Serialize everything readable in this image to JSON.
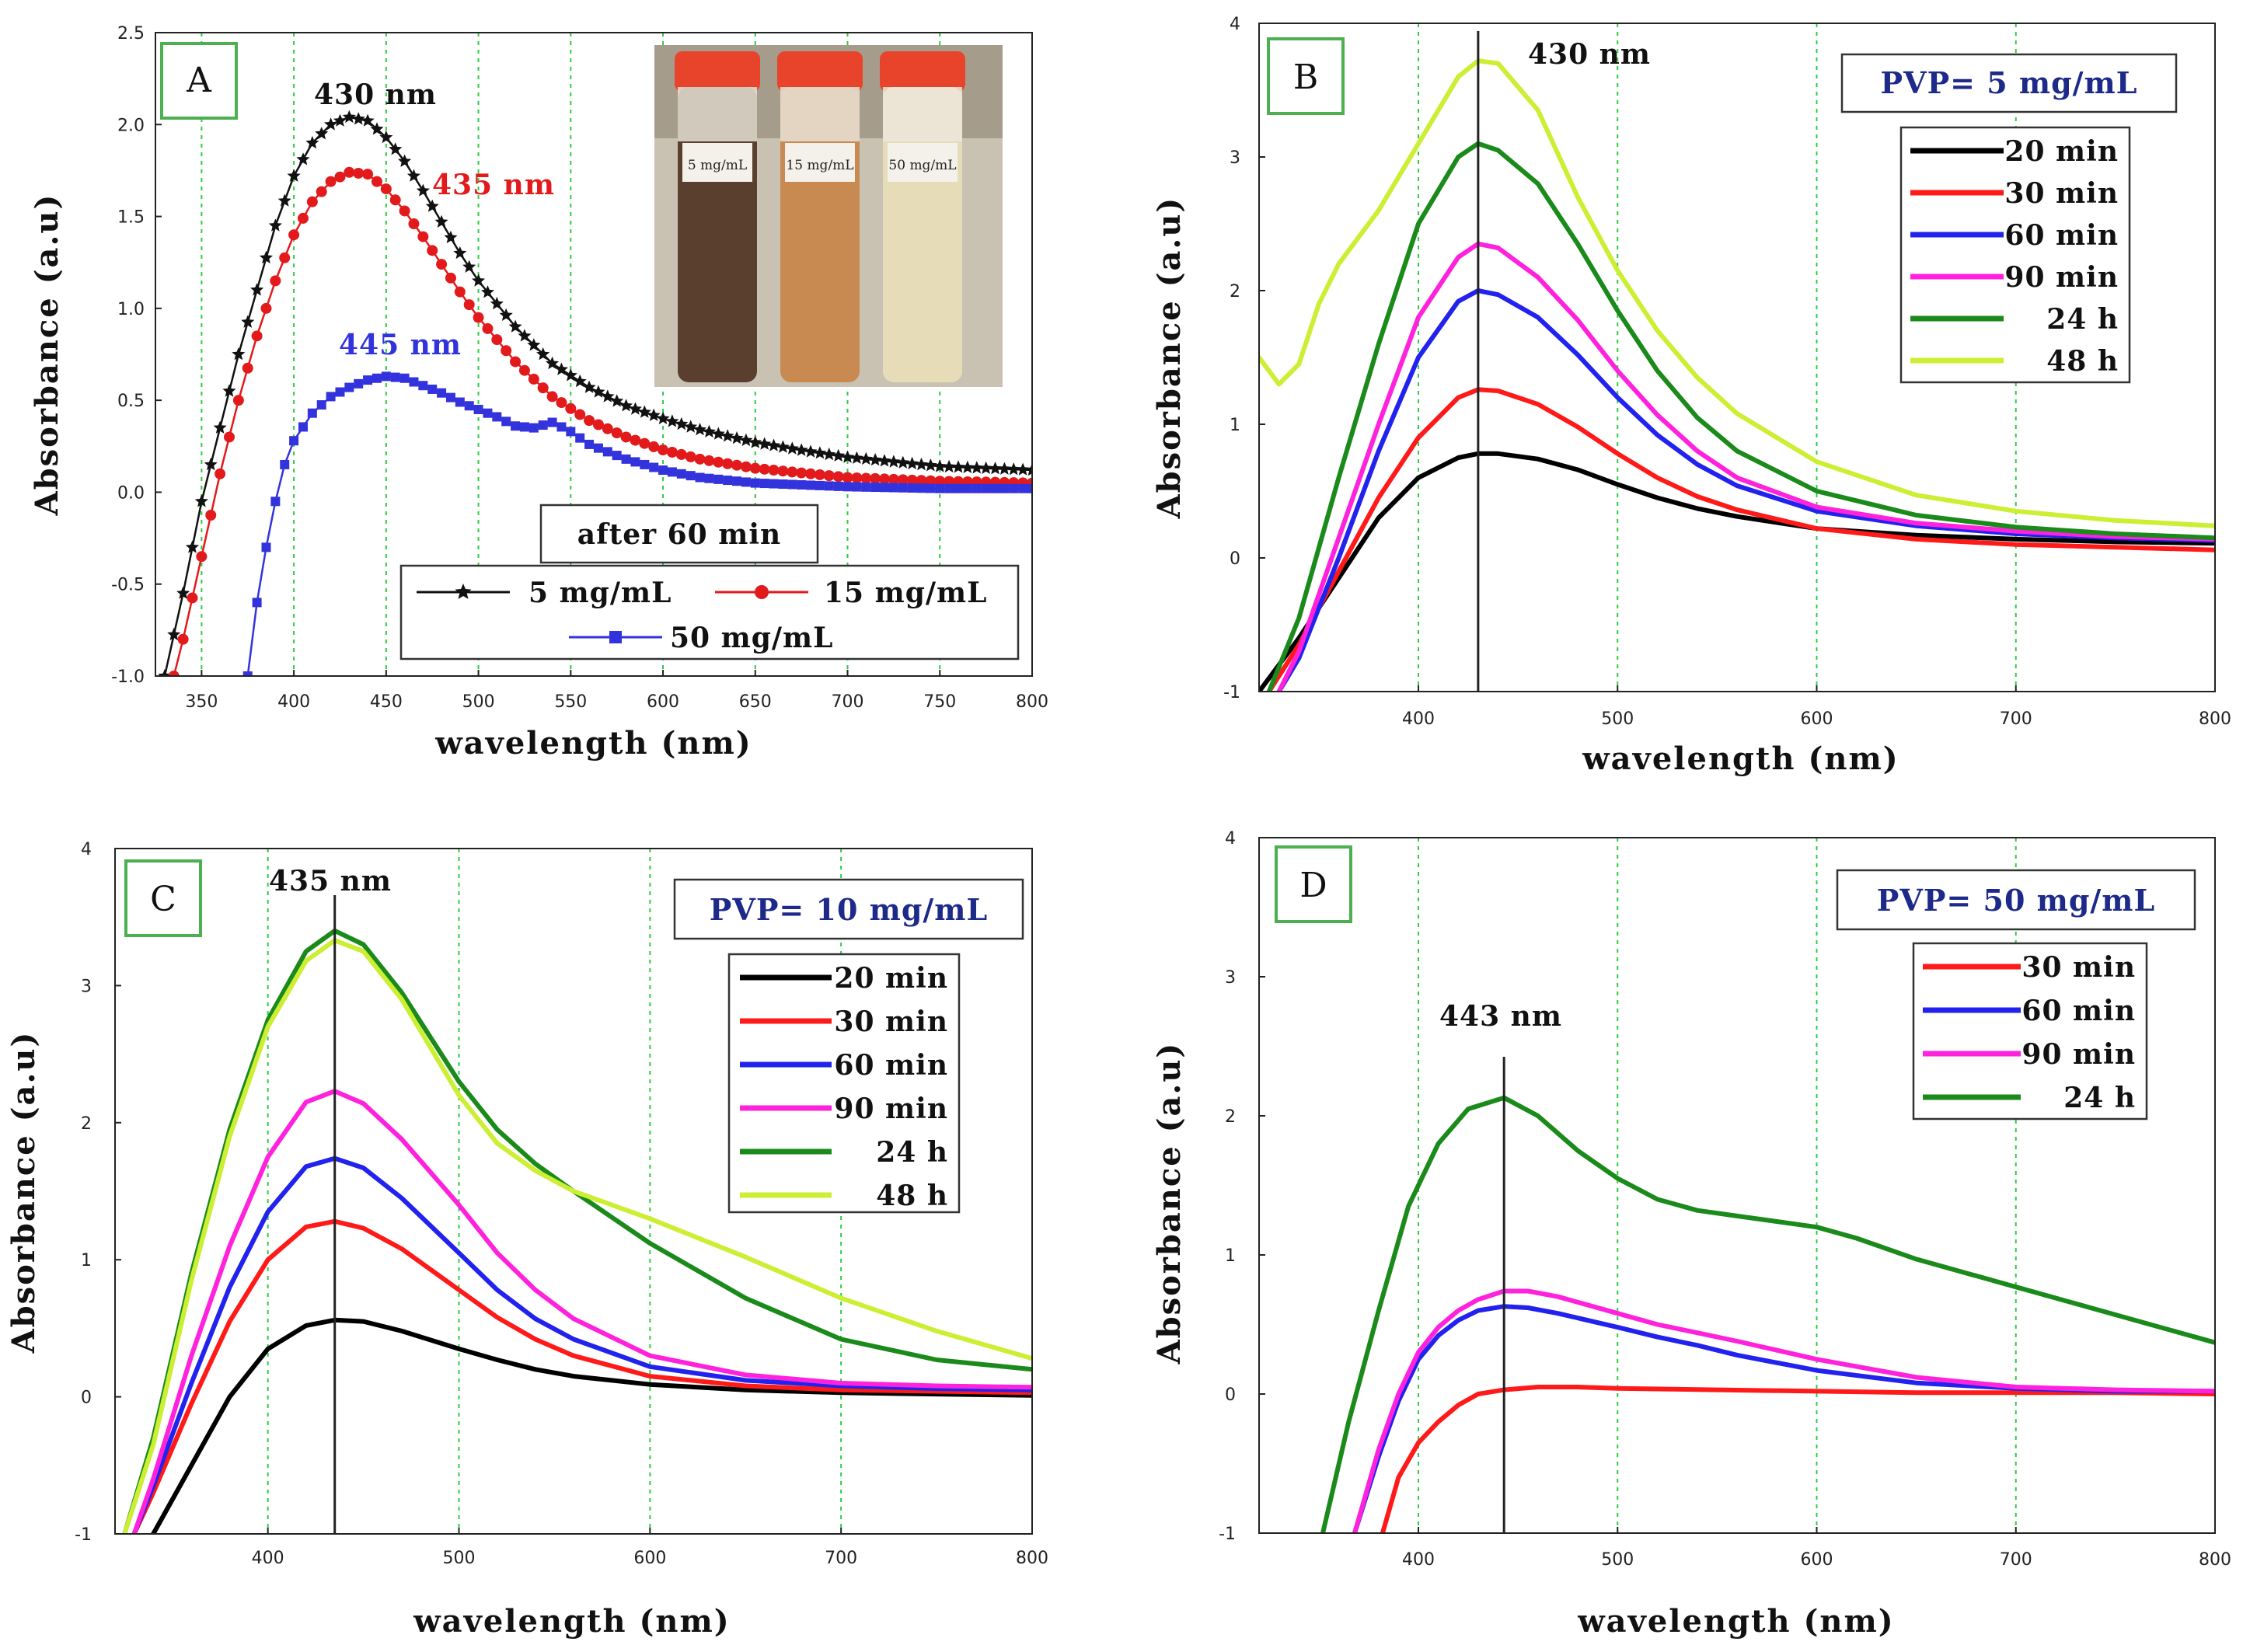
{
  "chart_data": [
    {
      "panel": "A",
      "type": "line",
      "x_label": "wavelength (nm)",
      "y_label": "Absorbance (a.u)",
      "x_ticks": [
        "350",
        "400",
        "450",
        "500",
        "550",
        "600",
        "650",
        "700",
        "750",
        "800"
      ],
      "y_ticks": [
        "-1.0",
        "-0.5",
        "0.0",
        "0.5",
        "1.0",
        "1.5",
        "2.0",
        "2.5"
      ],
      "xlim": [
        325,
        800
      ],
      "ylim": [
        -1.0,
        2.5
      ],
      "grid_x": [
        350,
        400,
        450,
        500,
        550,
        600,
        650,
        700,
        750,
        800
      ],
      "note": "after 60 min",
      "inset_photo_labels": [
        "5 mg/mL",
        "15 mg/mL",
        "50 mg/mL"
      ],
      "peak_annotations": [
        {
          "text": "430 nm",
          "color": "#111111"
        },
        {
          "text": "435 nm",
          "color": "#e31a1c"
        },
        {
          "text": "445 nm",
          "color": "#3333dd"
        }
      ],
      "series": [
        {
          "name": "5 mg/mL",
          "color": "#111111",
          "marker": "star",
          "x": [
            330,
            340,
            350,
            360,
            370,
            380,
            390,
            400,
            410,
            420,
            430,
            440,
            450,
            460,
            470,
            480,
            490,
            500,
            520,
            540,
            560,
            580,
            600,
            620,
            650,
            680,
            700,
            750,
            800
          ],
          "y": [
            -1.0,
            -0.55,
            -0.05,
            0.35,
            0.75,
            1.1,
            1.45,
            1.72,
            1.9,
            2.0,
            2.04,
            2.02,
            1.93,
            1.8,
            1.64,
            1.47,
            1.3,
            1.15,
            0.9,
            0.7,
            0.57,
            0.47,
            0.4,
            0.34,
            0.27,
            0.22,
            0.19,
            0.14,
            0.12
          ]
        },
        {
          "name": "15 mg/mL",
          "color": "#e31a1c",
          "marker": "circle",
          "x": [
            335,
            340,
            350,
            360,
            370,
            380,
            390,
            400,
            410,
            420,
            430,
            440,
            450,
            460,
            470,
            480,
            490,
            500,
            520,
            540,
            560,
            580,
            600,
            620,
            650,
            680,
            700,
            750,
            800
          ],
          "y": [
            -1.0,
            -0.8,
            -0.35,
            0.1,
            0.5,
            0.85,
            1.15,
            1.4,
            1.58,
            1.69,
            1.74,
            1.73,
            1.65,
            1.53,
            1.39,
            1.24,
            1.09,
            0.95,
            0.71,
            0.52,
            0.39,
            0.3,
            0.23,
            0.18,
            0.13,
            0.1,
            0.08,
            0.06,
            0.05
          ]
        },
        {
          "name": "50 mg/mL",
          "color": "#3333dd",
          "marker": "square",
          "x": [
            375,
            380,
            385,
            390,
            395,
            400,
            410,
            420,
            430,
            440,
            450,
            460,
            470,
            480,
            490,
            500,
            510,
            520,
            530,
            540,
            550,
            560,
            580,
            600,
            620,
            650,
            700,
            750,
            800
          ],
          "y": [
            -1.0,
            -0.6,
            -0.3,
            -0.05,
            0.15,
            0.28,
            0.43,
            0.52,
            0.57,
            0.61,
            0.63,
            0.62,
            0.58,
            0.54,
            0.49,
            0.45,
            0.41,
            0.36,
            0.35,
            0.38,
            0.33,
            0.26,
            0.18,
            0.12,
            0.08,
            0.05,
            0.03,
            0.02,
            0.02
          ]
        }
      ]
    },
    {
      "panel": "B",
      "type": "line",
      "x_label": "wavelength (nm)",
      "y_label": "Absorbance (a.u)",
      "x_ticks": [
        "400",
        "500",
        "600",
        "700",
        "800"
      ],
      "y_ticks": [
        "-1",
        "0",
        "1",
        "2",
        "3",
        "4"
      ],
      "xlim": [
        320,
        800
      ],
      "ylim": [
        -1,
        4
      ],
      "grid_x": [
        400,
        500,
        600,
        700
      ],
      "peak_line_x": 430,
      "peak_label": "430 nm",
      "pvp_label": "PVP= 5 mg/mL",
      "series": [
        {
          "name": "20 min",
          "color": "#000000",
          "x": [
            320,
            340,
            360,
            380,
            400,
            420,
            430,
            440,
            460,
            480,
            500,
            520,
            540,
            560,
            600,
            650,
            700,
            750,
            800
          ],
          "y": [
            -1.0,
            -0.6,
            -0.15,
            0.3,
            0.6,
            0.75,
            0.78,
            0.78,
            0.74,
            0.66,
            0.55,
            0.45,
            0.37,
            0.31,
            0.22,
            0.17,
            0.14,
            0.12,
            0.11
          ]
        },
        {
          "name": "30 min",
          "color": "#ff1a1a",
          "x": [
            325,
            340,
            360,
            380,
            400,
            420,
            430,
            440,
            460,
            480,
            500,
            520,
            540,
            560,
            600,
            650,
            700,
            750,
            800
          ],
          "y": [
            -1.0,
            -0.65,
            -0.1,
            0.45,
            0.9,
            1.2,
            1.26,
            1.25,
            1.15,
            0.98,
            0.78,
            0.6,
            0.46,
            0.36,
            0.22,
            0.14,
            0.1,
            0.08,
            0.06
          ]
        },
        {
          "name": "60 min",
          "color": "#2222ee",
          "x": [
            330,
            340,
            360,
            380,
            400,
            420,
            430,
            440,
            460,
            480,
            500,
            520,
            540,
            560,
            600,
            650,
            700,
            750,
            800
          ],
          "y": [
            -1.0,
            -0.75,
            0.0,
            0.8,
            1.5,
            1.92,
            2.0,
            1.97,
            1.8,
            1.52,
            1.2,
            0.92,
            0.7,
            0.54,
            0.35,
            0.24,
            0.18,
            0.15,
            0.13
          ]
        },
        {
          "name": "90 min",
          "color": "#ff22dd",
          "x": [
            330,
            340,
            360,
            380,
            400,
            420,
            430,
            440,
            460,
            480,
            500,
            520,
            540,
            560,
            600,
            650,
            700,
            750,
            800
          ],
          "y": [
            -1.0,
            -0.7,
            0.15,
            1.0,
            1.8,
            2.25,
            2.35,
            2.32,
            2.1,
            1.78,
            1.4,
            1.07,
            0.8,
            0.6,
            0.38,
            0.26,
            0.2,
            0.16,
            0.14
          ]
        },
        {
          "name": "24 h",
          "color": "#1a8a1a",
          "x": [
            325,
            340,
            360,
            380,
            400,
            420,
            430,
            440,
            460,
            480,
            500,
            520,
            540,
            560,
            600,
            650,
            700,
            750,
            800
          ],
          "y": [
            -1.0,
            -0.45,
            0.6,
            1.6,
            2.5,
            3.0,
            3.1,
            3.05,
            2.8,
            2.35,
            1.85,
            1.4,
            1.05,
            0.8,
            0.5,
            0.32,
            0.23,
            0.18,
            0.15
          ]
        },
        {
          "name": "48 h",
          "color": "#ccee33",
          "x": [
            320,
            330,
            340,
            350,
            360,
            380,
            400,
            420,
            430,
            440,
            460,
            480,
            500,
            520,
            540,
            560,
            600,
            650,
            700,
            750,
            800
          ],
          "y": [
            1.5,
            1.3,
            1.45,
            1.9,
            2.2,
            2.6,
            3.1,
            3.6,
            3.72,
            3.7,
            3.35,
            2.7,
            2.15,
            1.7,
            1.35,
            1.08,
            0.72,
            0.47,
            0.35,
            0.28,
            0.24
          ]
        }
      ]
    },
    {
      "panel": "C",
      "type": "line",
      "x_label": "wavelength (nm)",
      "y_label": "Absorbance (a.u)",
      "x_ticks": [
        "400",
        "500",
        "600",
        "700",
        "800"
      ],
      "y_ticks": [
        "-1",
        "0",
        "1",
        "2",
        "3",
        "4"
      ],
      "xlim": [
        320,
        800
      ],
      "ylim": [
        -1,
        4
      ],
      "grid_x": [
        400,
        500,
        600,
        700
      ],
      "peak_line_x": 435,
      "peak_label": "435 nm",
      "pvp_label": "PVP= 10 mg/mL",
      "series": [
        {
          "name": "20 min",
          "color": "#000000",
          "x": [
            340,
            360,
            380,
            400,
            420,
            435,
            450,
            470,
            500,
            520,
            540,
            560,
            600,
            650,
            700,
            750,
            800
          ],
          "y": [
            -1.0,
            -0.5,
            0.0,
            0.35,
            0.52,
            0.56,
            0.55,
            0.48,
            0.35,
            0.27,
            0.2,
            0.15,
            0.09,
            0.05,
            0.03,
            0.02,
            0.01
          ]
        },
        {
          "name": "30 min",
          "color": "#ff1a1a",
          "x": [
            330,
            340,
            360,
            380,
            400,
            420,
            435,
            450,
            470,
            500,
            520,
            540,
            560,
            600,
            650,
            700,
            750,
            800
          ],
          "y": [
            -1.0,
            -0.7,
            -0.05,
            0.55,
            1.0,
            1.24,
            1.28,
            1.23,
            1.08,
            0.78,
            0.58,
            0.42,
            0.3,
            0.15,
            0.08,
            0.05,
            0.04,
            0.03
          ]
        },
        {
          "name": "60 min",
          "color": "#2222ee",
          "x": [
            330,
            340,
            360,
            380,
            400,
            420,
            435,
            450,
            470,
            500,
            520,
            540,
            560,
            600,
            650,
            700,
            750,
            800
          ],
          "y": [
            -1.0,
            -0.65,
            0.1,
            0.8,
            1.35,
            1.68,
            1.74,
            1.67,
            1.45,
            1.05,
            0.78,
            0.57,
            0.42,
            0.22,
            0.12,
            0.08,
            0.06,
            0.05
          ]
        },
        {
          "name": "90 min",
          "color": "#ff22dd",
          "x": [
            330,
            340,
            360,
            380,
            400,
            420,
            435,
            450,
            470,
            500,
            520,
            540,
            560,
            600,
            650,
            700,
            750,
            800
          ],
          "y": [
            -1.0,
            -0.6,
            0.3,
            1.1,
            1.75,
            2.15,
            2.23,
            2.14,
            1.88,
            1.4,
            1.05,
            0.78,
            0.57,
            0.3,
            0.16,
            0.1,
            0.08,
            0.07
          ]
        },
        {
          "name": "24 h",
          "color": "#1a8a1a",
          "x": [
            325,
            340,
            360,
            380,
            400,
            420,
            435,
            450,
            470,
            500,
            520,
            540,
            560,
            600,
            650,
            700,
            750,
            800
          ],
          "y": [
            -1.0,
            -0.3,
            0.9,
            1.95,
            2.75,
            3.25,
            3.4,
            3.3,
            2.95,
            2.3,
            1.95,
            1.7,
            1.5,
            1.12,
            0.72,
            0.42,
            0.27,
            0.2
          ]
        },
        {
          "name": "48 h",
          "color": "#ccee33",
          "x": [
            325,
            340,
            360,
            380,
            400,
            420,
            435,
            450,
            470,
            500,
            520,
            540,
            560,
            600,
            650,
            700,
            750,
            800
          ],
          "y": [
            -1.0,
            -0.35,
            0.85,
            1.9,
            2.7,
            3.18,
            3.33,
            3.25,
            2.9,
            2.2,
            1.85,
            1.65,
            1.5,
            1.3,
            1.02,
            0.72,
            0.48,
            0.28
          ]
        }
      ]
    },
    {
      "panel": "D",
      "type": "line",
      "x_label": "wavelength (nm)",
      "y_label": "Absorbance (a.u)",
      "x_ticks": [
        "400",
        "500",
        "600",
        "700",
        "800"
      ],
      "y_ticks": [
        "-1",
        "0",
        "1",
        "2",
        "3",
        "4"
      ],
      "xlim": [
        320,
        800
      ],
      "ylim": [
        -1,
        4
      ],
      "grid_x": [
        400,
        500,
        600,
        700
      ],
      "peak_line_x": 443,
      "peak_label": "443 nm",
      "pvp_label": "PVP= 50 mg/mL",
      "series": [
        {
          "name": "30 min",
          "color": "#ff1a1a",
          "x": [
            382,
            390,
            400,
            410,
            420,
            430,
            443,
            460,
            480,
            500,
            550,
            600,
            650,
            700,
            750,
            800
          ],
          "y": [
            -1.0,
            -0.6,
            -0.35,
            -0.2,
            -0.08,
            0.0,
            0.03,
            0.05,
            0.05,
            0.04,
            0.03,
            0.02,
            0.01,
            0.01,
            0.01,
            0.0
          ]
        },
        {
          "name": "60 min",
          "color": "#2222ee",
          "x": [
            368,
            380,
            390,
            400,
            410,
            420,
            430,
            443,
            455,
            470,
            500,
            520,
            540,
            560,
            600,
            650,
            700,
            750,
            800
          ],
          "y": [
            -1.0,
            -0.45,
            -0.05,
            0.25,
            0.42,
            0.53,
            0.6,
            0.63,
            0.62,
            0.58,
            0.48,
            0.41,
            0.35,
            0.28,
            0.17,
            0.08,
            0.04,
            0.02,
            0.02
          ]
        },
        {
          "name": "90 min",
          "color": "#ff22dd",
          "x": [
            368,
            380,
            390,
            400,
            410,
            420,
            430,
            443,
            455,
            470,
            500,
            520,
            540,
            560,
            600,
            650,
            700,
            750,
            800
          ],
          "y": [
            -1.0,
            -0.4,
            0.0,
            0.3,
            0.48,
            0.6,
            0.68,
            0.74,
            0.74,
            0.7,
            0.58,
            0.5,
            0.44,
            0.38,
            0.25,
            0.12,
            0.05,
            0.03,
            0.02
          ]
        },
        {
          "name": "24 h",
          "color": "#1a8a1a",
          "x": [
            352,
            365,
            380,
            395,
            410,
            425,
            443,
            460,
            480,
            500,
            520,
            540,
            560,
            580,
            600,
            620,
            650,
            700,
            750,
            800
          ],
          "y": [
            -1.0,
            -0.2,
            0.6,
            1.35,
            1.8,
            2.05,
            2.13,
            2.0,
            1.75,
            1.55,
            1.4,
            1.32,
            1.28,
            1.24,
            1.2,
            1.12,
            0.97,
            0.77,
            0.57,
            0.37
          ]
        }
      ]
    }
  ]
}
